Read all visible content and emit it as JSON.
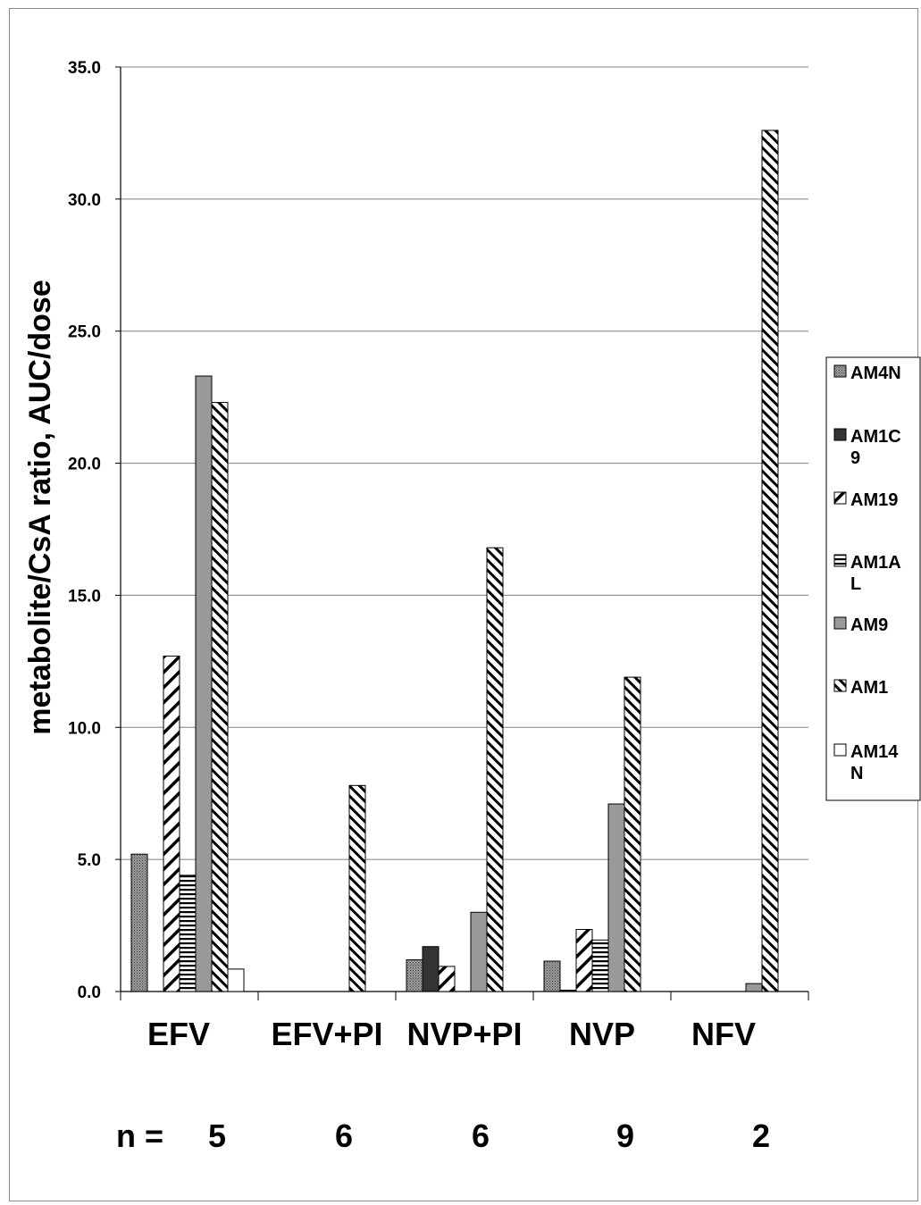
{
  "chart_data": {
    "type": "bar",
    "ylabel": "metabolite/CsA ratio, AUC/dose",
    "ylim": [
      0,
      35
    ],
    "yticks": [
      "0.0",
      "5.0",
      "10.0",
      "15.0",
      "20.0",
      "25.0",
      "30.0",
      "35.0"
    ],
    "grid": true,
    "legend_position": "right",
    "categories": [
      "EFV",
      "EFV+PI",
      "NVP+PI",
      "NVP",
      "NFV"
    ],
    "n_label": "n =",
    "n_values": [
      "5",
      "6",
      "6",
      "9",
      "2"
    ],
    "series": [
      {
        "name": "AM4N",
        "legend_lines": [
          "AM4N"
        ],
        "pattern": "dots",
        "color": "#777777",
        "values": [
          5.2,
          0,
          1.2,
          1.15,
          0
        ]
      },
      {
        "name": "AM1C9",
        "legend_lines": [
          "AM1C",
          "9"
        ],
        "pattern": "solid",
        "color": "#333333",
        "values": [
          0,
          0,
          1.7,
          0.05,
          0
        ]
      },
      {
        "name": "AM19",
        "legend_lines": [
          "AM19"
        ],
        "pattern": "diag-wide",
        "color": "#000000",
        "values": [
          12.7,
          0,
          0.95,
          2.35,
          0
        ]
      },
      {
        "name": "AM1AL",
        "legend_lines": [
          "AM1A",
          "L"
        ],
        "pattern": "horizontal",
        "color": "#000000",
        "values": [
          4.4,
          0,
          0,
          1.95,
          0
        ]
      },
      {
        "name": "AM9",
        "legend_lines": [
          "AM9"
        ],
        "pattern": "solid",
        "color": "#999999",
        "values": [
          23.3,
          0,
          3.0,
          7.1,
          0.3
        ]
      },
      {
        "name": "AM1",
        "legend_lines": [
          "AM1"
        ],
        "pattern": "diag-back",
        "color": "#000000",
        "values": [
          22.3,
          7.8,
          16.8,
          11.9,
          32.6
        ]
      },
      {
        "name": "AM14N",
        "legend_lines": [
          "AM14",
          "N"
        ],
        "pattern": "solid",
        "color": "#ffffff",
        "values": [
          0.85,
          0,
          0,
          0,
          0
        ]
      }
    ]
  }
}
